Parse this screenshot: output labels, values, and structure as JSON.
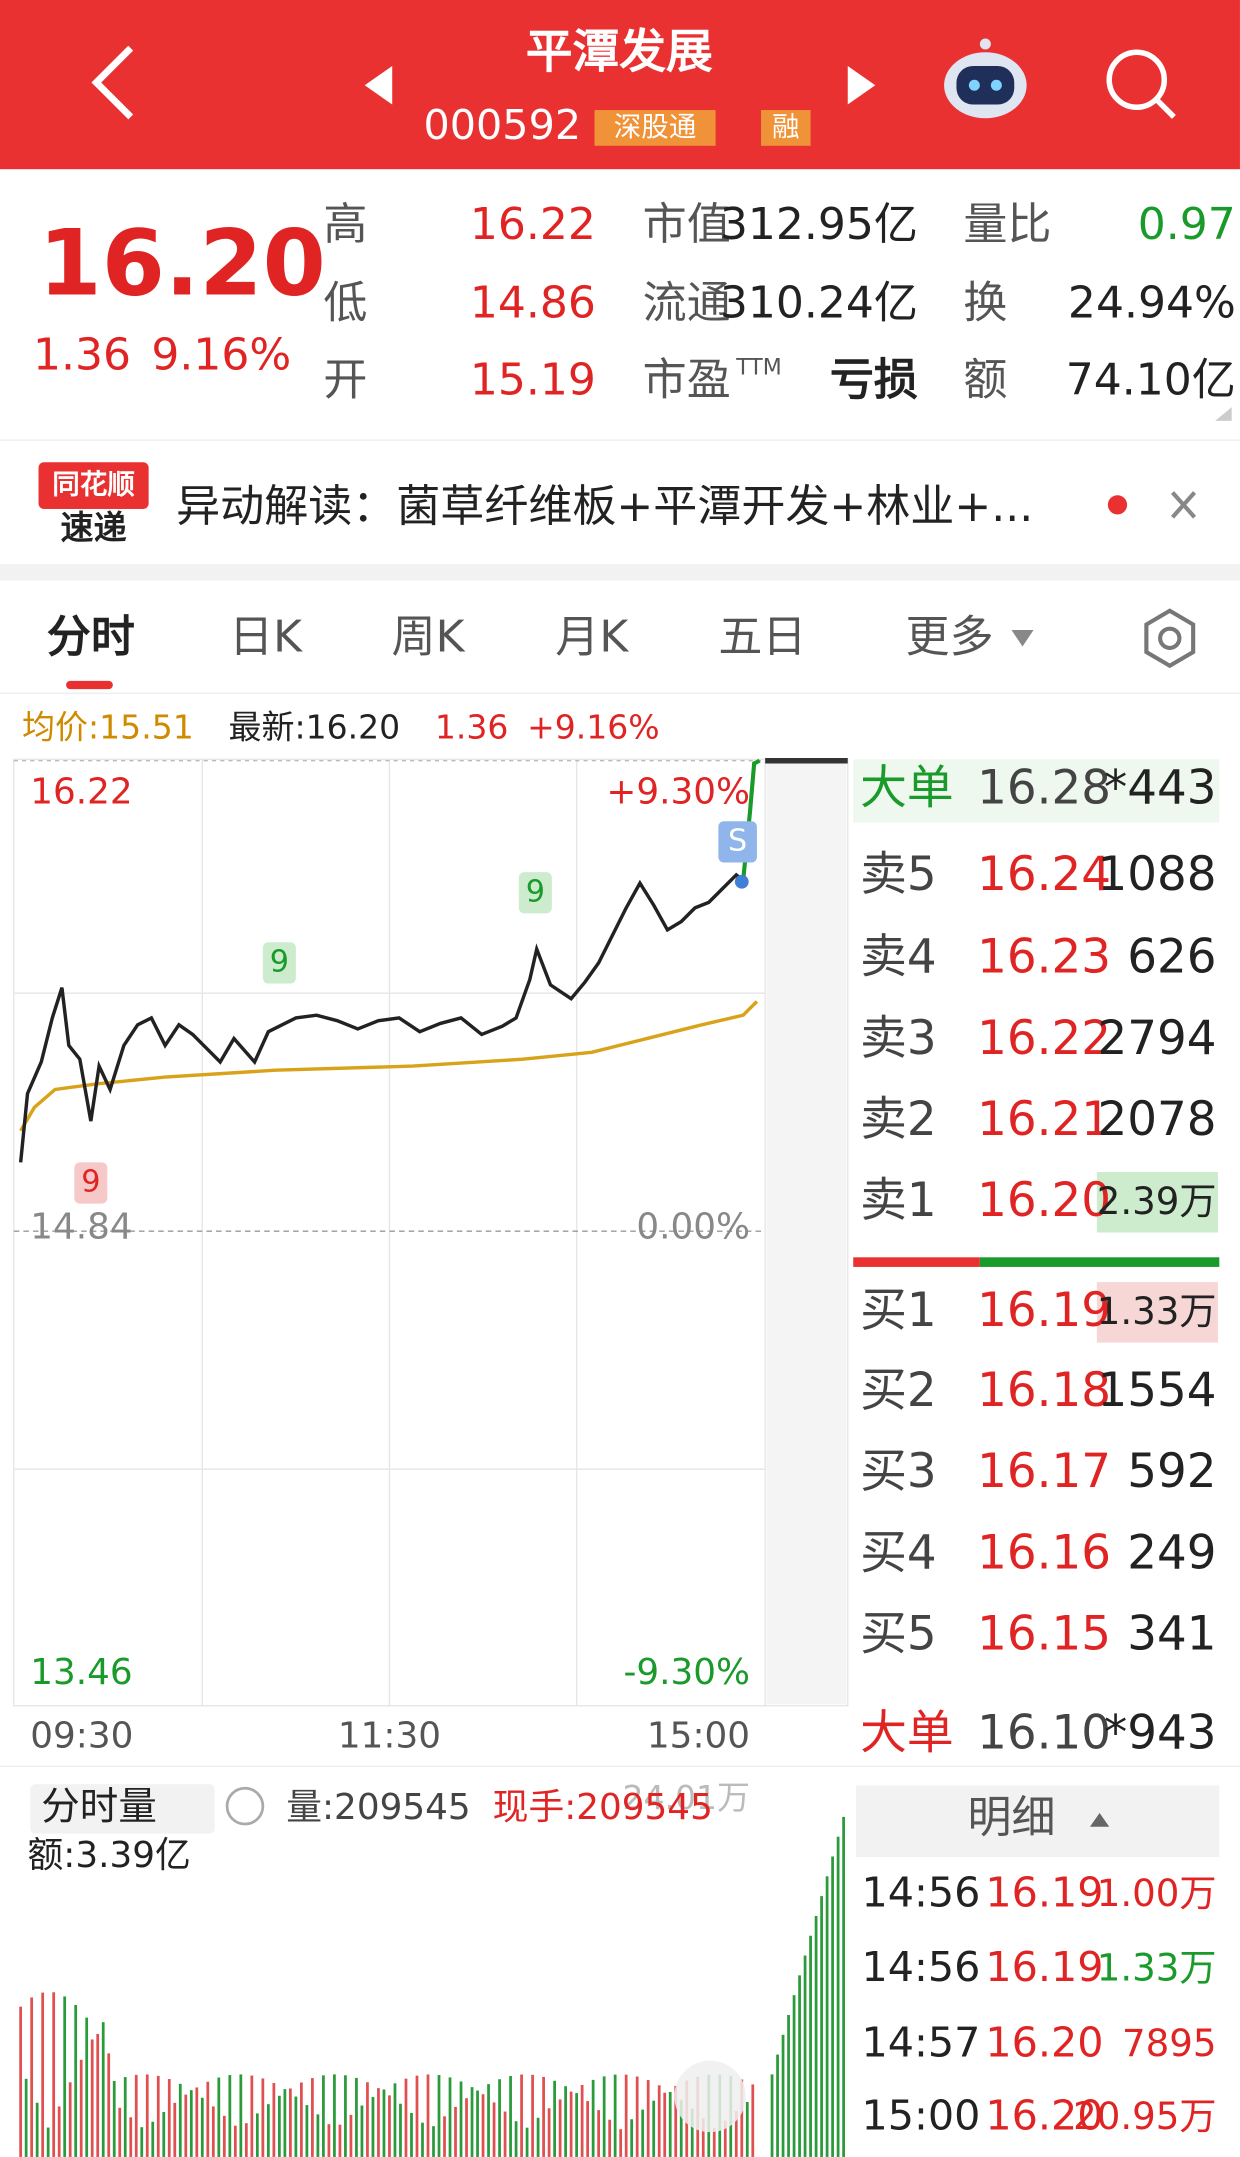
{
  "header": {
    "title": "平潭发展",
    "code": "000592",
    "tags": [
      "深股通",
      "融"
    ]
  },
  "quote": {
    "price": "16.20",
    "change": "1.36",
    "change_pct": "9.16%",
    "stats": [
      {
        "label": "高",
        "value": "16.22"
      },
      {
        "label": "市值",
        "value": "312.95亿"
      },
      {
        "label": "量比",
        "value": "0.97"
      },
      {
        "label": "低",
        "value": "14.86"
      },
      {
        "label": "流通",
        "value": "310.24亿"
      },
      {
        "label": "换",
        "value": "24.94%"
      },
      {
        "label": "开",
        "value": "15.19"
      },
      {
        "label": "市盈",
        "label_sup": "TTM",
        "value": "亏损"
      },
      {
        "label": "额",
        "value": "74.10亿"
      }
    ]
  },
  "news": {
    "source": [
      "同花顺",
      "速递"
    ],
    "text": "异动解读：菌草纤维板+平潭开发+林业+..."
  },
  "tabs": [
    "分时",
    "日K",
    "周K",
    "月K",
    "五日",
    "更多"
  ],
  "info": {
    "avg": "均价:15.51",
    "latest": "最新:16.20",
    "change": "1.36",
    "change_pct": "+9.16%"
  },
  "chart": {
    "left_labels": [
      "16.22",
      "14.84",
      "13.46"
    ],
    "right_labels": [
      "+9.30%",
      "0.00%",
      "-9.30%"
    ],
    "x_labels": [
      "09:30",
      "11:30",
      "15:00"
    ],
    "markers": [
      "9",
      "9",
      "9",
      "S"
    ]
  },
  "order_book": {
    "big_sell": {
      "label": "大单",
      "price": "16.28",
      "volume": "*443"
    },
    "asks": [
      {
        "label": "卖5",
        "price": "16.24",
        "volume": "1088"
      },
      {
        "label": "卖4",
        "price": "16.23",
        "volume": "626"
      },
      {
        "label": "卖3",
        "price": "16.22",
        "volume": "2794"
      },
      {
        "label": "卖2",
        "price": "16.21",
        "volume": "2078"
      },
      {
        "label": "卖1",
        "price": "16.20",
        "volume": "2.39万"
      }
    ],
    "bids": [
      {
        "label": "买1",
        "price": "16.19",
        "volume": "1.33万"
      },
      {
        "label": "买2",
        "price": "16.18",
        "volume": "1554"
      },
      {
        "label": "买3",
        "price": "16.17",
        "volume": "592"
      },
      {
        "label": "买4",
        "price": "16.16",
        "volume": "249"
      },
      {
        "label": "买5",
        "price": "16.15",
        "volume": "341"
      }
    ],
    "big_buy": {
      "label": "大单",
      "price": "16.10",
      "volume": "*943"
    }
  },
  "details": {
    "title": "明细",
    "trades": [
      {
        "time": "14:56",
        "price": "16.19",
        "volume": "1.00万"
      },
      {
        "time": "14:56",
        "price": "16.19",
        "volume": "1.33万"
      },
      {
        "time": "14:57",
        "price": "16.20",
        "volume": "7895"
      },
      {
        "time": "15:00",
        "price": "16.20",
        "volume": "20.95万"
      }
    ]
  },
  "volume": {
    "selector": "分时量",
    "volume": "量:209545",
    "hand": "现手:209545",
    "max": "24.01万",
    "amount": "额:3.39亿"
  }
}
